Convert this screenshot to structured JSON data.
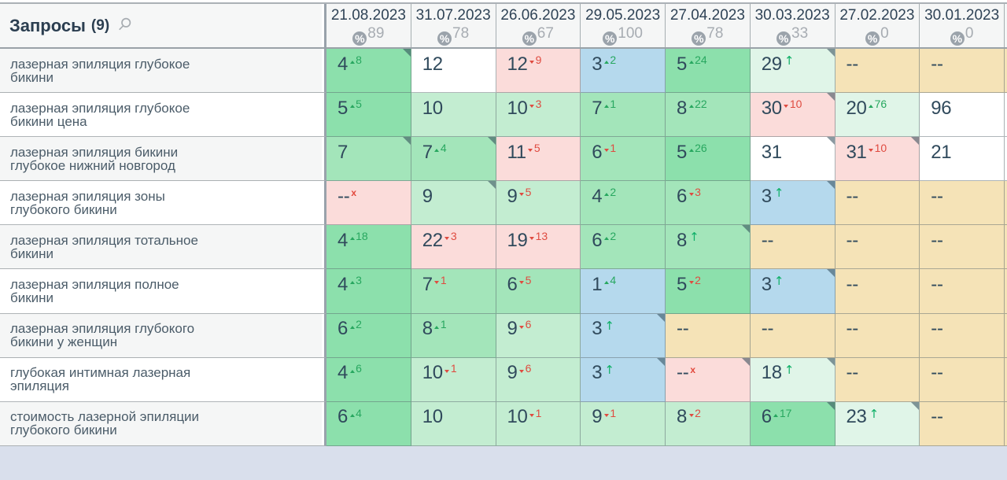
{
  "header": {
    "queries_label": "Запросы",
    "queries_count": "(9)",
    "dates": [
      {
        "date": "21.08.2023",
        "percent": "89"
      },
      {
        "date": "31.07.2023",
        "percent": "78"
      },
      {
        "date": "26.06.2023",
        "percent": "67"
      },
      {
        "date": "29.05.2023",
        "percent": "100"
      },
      {
        "date": "27.04.2023",
        "percent": "78"
      },
      {
        "date": "30.03.2023",
        "percent": "33"
      },
      {
        "date": "27.02.2023",
        "percent": "0"
      },
      {
        "date": "30.01.2023",
        "percent": "0"
      }
    ],
    "percent_icon": "%"
  },
  "palette": {
    "green_strong": "#8ce0ac",
    "green_medium": "#a3e5ba",
    "green_light": "#c3edd1",
    "green_pale": "#e0f5e8",
    "blue_top3": "#b5d9ed",
    "pink_drop": "#fbdcda",
    "tan_none": "#f5e3b7",
    "white": "#ffffff",
    "delta_up": "#27a75f",
    "delta_down": "#df4b40",
    "new_arrow": "#10b068",
    "lost_x": "#e2483c"
  },
  "rows": [
    {
      "query": "лазерная эпиляция глубокое бикини",
      "cells": [
        {
          "v": "4",
          "d": "up",
          "n": "8",
          "bg": "g1",
          "corner": true
        },
        {
          "v": "12",
          "d": "none",
          "bg": "wh"
        },
        {
          "v": "12",
          "d": "down",
          "n": "9",
          "bg": "pk"
        },
        {
          "v": "3",
          "d": "up",
          "n": "2",
          "bg": "bl"
        },
        {
          "v": "5",
          "d": "up",
          "n": "24",
          "bg": "g1"
        },
        {
          "v": "29",
          "d": "new",
          "bg": "g4",
          "corner": true
        },
        {
          "v": "--",
          "d": "none",
          "bg": "tn"
        },
        {
          "v": "--",
          "d": "none",
          "bg": "tn"
        }
      ],
      "edge": "tn"
    },
    {
      "query": "лазерная эпиляция глубокое бикини цена",
      "cells": [
        {
          "v": "5",
          "d": "up",
          "n": "5",
          "bg": "g1"
        },
        {
          "v": "10",
          "d": "none",
          "bg": "g3"
        },
        {
          "v": "10",
          "d": "down",
          "n": "3",
          "bg": "g3"
        },
        {
          "v": "7",
          "d": "up",
          "n": "1",
          "bg": "g2"
        },
        {
          "v": "8",
          "d": "up",
          "n": "22",
          "bg": "g2"
        },
        {
          "v": "30",
          "d": "down",
          "n": "10",
          "bg": "pk",
          "corner": true
        },
        {
          "v": "20",
          "d": "up",
          "n": "76",
          "bg": "g4"
        },
        {
          "v": "96",
          "d": "none",
          "bg": "wh"
        }
      ],
      "edge": "wh"
    },
    {
      "query": "лазерная эпиляция бикини глубокое нижний новгород",
      "cells": [
        {
          "v": "7",
          "d": "none",
          "bg": "g2",
          "corner": true
        },
        {
          "v": "7",
          "d": "up",
          "n": "4",
          "bg": "g2",
          "corner": true
        },
        {
          "v": "11",
          "d": "down",
          "n": "5",
          "bg": "pk"
        },
        {
          "v": "6",
          "d": "down",
          "n": "1",
          "bg": "g2"
        },
        {
          "v": "5",
          "d": "up",
          "n": "26",
          "bg": "g1"
        },
        {
          "v": "31",
          "d": "none",
          "bg": "wh",
          "corner": true
        },
        {
          "v": "31",
          "d": "down",
          "n": "10",
          "bg": "pk",
          "corner": true
        },
        {
          "v": "21",
          "d": "none",
          "bg": "wh"
        }
      ],
      "edge": "wh"
    },
    {
      "query": "лазерная эпиляция зоны глубокого бикини",
      "cells": [
        {
          "v": "--",
          "d": "x",
          "bg": "pk"
        },
        {
          "v": "9",
          "d": "none",
          "bg": "g3",
          "corner": true
        },
        {
          "v": "9",
          "d": "down",
          "n": "5",
          "bg": "g3"
        },
        {
          "v": "4",
          "d": "up",
          "n": "2",
          "bg": "g2"
        },
        {
          "v": "6",
          "d": "down",
          "n": "3",
          "bg": "g2"
        },
        {
          "v": "3",
          "d": "new",
          "bg": "bl",
          "corner": true
        },
        {
          "v": "--",
          "d": "none",
          "bg": "tn"
        },
        {
          "v": "--",
          "d": "none",
          "bg": "tn"
        }
      ],
      "edge": "tn"
    },
    {
      "query": "лазерная эпиляция тотальное бикини",
      "cells": [
        {
          "v": "4",
          "d": "up",
          "n": "18",
          "bg": "g1"
        },
        {
          "v": "22",
          "d": "down",
          "n": "3",
          "bg": "pk"
        },
        {
          "v": "19",
          "d": "down",
          "n": "13",
          "bg": "pk"
        },
        {
          "v": "6",
          "d": "up",
          "n": "2",
          "bg": "g2"
        },
        {
          "v": "8",
          "d": "new",
          "bg": "g2",
          "corner": true
        },
        {
          "v": "--",
          "d": "none",
          "bg": "tn"
        },
        {
          "v": "--",
          "d": "none",
          "bg": "tn"
        },
        {
          "v": "--",
          "d": "none",
          "bg": "tn"
        }
      ],
      "edge": "tn"
    },
    {
      "query": "лазерная эпиляция полное бикини",
      "cells": [
        {
          "v": "4",
          "d": "up",
          "n": "3",
          "bg": "g1"
        },
        {
          "v": "7",
          "d": "down",
          "n": "1",
          "bg": "g2"
        },
        {
          "v": "6",
          "d": "down",
          "n": "5",
          "bg": "g2"
        },
        {
          "v": "1",
          "d": "up",
          "n": "4",
          "bg": "bl"
        },
        {
          "v": "5",
          "d": "down",
          "n": "2",
          "bg": "g1"
        },
        {
          "v": "3",
          "d": "new",
          "bg": "bl",
          "corner": true
        },
        {
          "v": "--",
          "d": "none",
          "bg": "tn"
        },
        {
          "v": "--",
          "d": "none",
          "bg": "tn"
        }
      ],
      "edge": "tn"
    },
    {
      "query": "лазерная эпиляция глубокого бикини у женщин",
      "cells": [
        {
          "v": "6",
          "d": "up",
          "n": "2",
          "bg": "g1"
        },
        {
          "v": "8",
          "d": "up",
          "n": "1",
          "bg": "g2"
        },
        {
          "v": "9",
          "d": "down",
          "n": "6",
          "bg": "g3"
        },
        {
          "v": "3",
          "d": "new",
          "bg": "bl",
          "corner": true
        },
        {
          "v": "--",
          "d": "none",
          "bg": "tn"
        },
        {
          "v": "--",
          "d": "none",
          "bg": "tn"
        },
        {
          "v": "--",
          "d": "none",
          "bg": "tn"
        },
        {
          "v": "--",
          "d": "none",
          "bg": "tn"
        }
      ],
      "edge": "tn"
    },
    {
      "query": "глубокая интимная лазерная эпиляция",
      "cells": [
        {
          "v": "4",
          "d": "up",
          "n": "6",
          "bg": "g1"
        },
        {
          "v": "10",
          "d": "down",
          "n": "1",
          "bg": "g3"
        },
        {
          "v": "9",
          "d": "down",
          "n": "6",
          "bg": "g3"
        },
        {
          "v": "3",
          "d": "new",
          "bg": "bl",
          "corner": true
        },
        {
          "v": "--",
          "d": "x",
          "bg": "pk",
          "corner": true
        },
        {
          "v": "18",
          "d": "new",
          "bg": "g4",
          "corner": true
        },
        {
          "v": "--",
          "d": "none",
          "bg": "tn"
        },
        {
          "v": "--",
          "d": "none",
          "bg": "tn"
        }
      ],
      "edge": "tn"
    },
    {
      "query": "стоимость лазерной эпиляции глубокого бикини",
      "cells": [
        {
          "v": "6",
          "d": "up",
          "n": "4",
          "bg": "g1"
        },
        {
          "v": "10",
          "d": "none",
          "bg": "g3"
        },
        {
          "v": "10",
          "d": "down",
          "n": "1",
          "bg": "g3"
        },
        {
          "v": "9",
          "d": "down",
          "n": "1",
          "bg": "g3"
        },
        {
          "v": "8",
          "d": "down",
          "n": "2",
          "bg": "g3"
        },
        {
          "v": "6",
          "d": "up",
          "n": "17",
          "bg": "g1",
          "corner": true
        },
        {
          "v": "23",
          "d": "new",
          "bg": "g4",
          "corner": true
        },
        {
          "v": "--",
          "d": "none",
          "bg": "tn"
        }
      ],
      "edge": "tn"
    }
  ]
}
